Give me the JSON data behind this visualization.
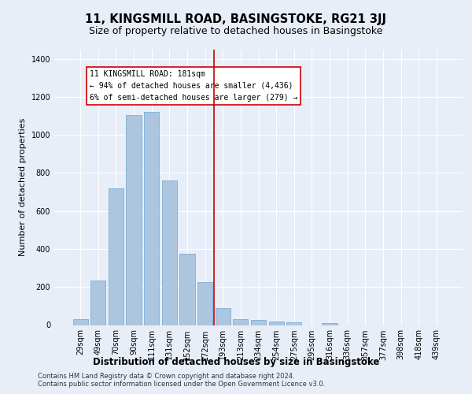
{
  "title": "11, KINGSMILL ROAD, BASINGSTOKE, RG21 3JJ",
  "subtitle": "Size of property relative to detached houses in Basingstoke",
  "xlabel": "Distribution of detached houses by size in Basingstoke",
  "ylabel": "Number of detached properties",
  "categories": [
    "29sqm",
    "49sqm",
    "70sqm",
    "90sqm",
    "111sqm",
    "131sqm",
    "152sqm",
    "172sqm",
    "193sqm",
    "213sqm",
    "234sqm",
    "254sqm",
    "275sqm",
    "295sqm",
    "316sqm",
    "336sqm",
    "357sqm",
    "377sqm",
    "398sqm",
    "418sqm",
    "439sqm"
  ],
  "values": [
    30,
    235,
    720,
    1105,
    1120,
    760,
    375,
    225,
    90,
    30,
    25,
    20,
    15,
    0,
    10,
    0,
    0,
    0,
    0,
    0,
    0
  ],
  "bar_color": "#adc6e0",
  "bar_edge_color": "#7aafd4",
  "vline_x": 7.5,
  "vline_color": "#cc0000",
  "annotation_text": "11 KINGSMILL ROAD: 181sqm\n← 94% of detached houses are smaller (4,436)\n6% of semi-detached houses are larger (279) →",
  "annotation_box_color": "#ffffff",
  "annotation_box_edge_color": "#cc0000",
  "ylim": [
    0,
    1450
  ],
  "yticks": [
    0,
    200,
    400,
    600,
    800,
    1000,
    1200,
    1400
  ],
  "bg_color": "#e8eef8",
  "plot_bg_color": "#e8eef8",
  "footnote1": "Contains HM Land Registry data © Crown copyright and database right 2024.",
  "footnote2": "Contains public sector information licensed under the Open Government Licence v3.0.",
  "title_fontsize": 10.5,
  "subtitle_fontsize": 9,
  "xlabel_fontsize": 8.5,
  "ylabel_fontsize": 8,
  "annotation_fontsize": 7,
  "tick_fontsize": 7,
  "footnote_fontsize": 6
}
